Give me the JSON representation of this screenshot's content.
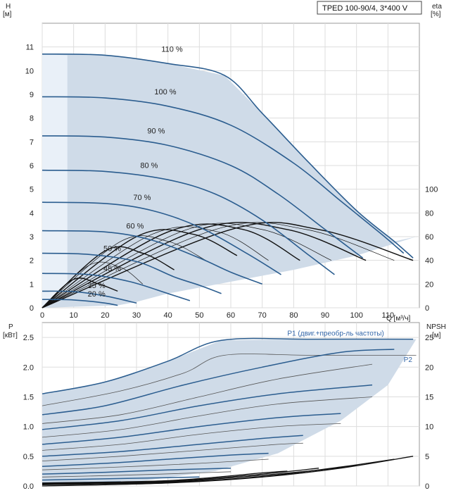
{
  "model_label": "TPED 100-90/4, 3*400 V",
  "axes": {
    "head_title": "H",
    "head_unit": "[м]",
    "eta_title": "eta",
    "eta_unit": "[%]",
    "flow_label": "Q [м³/ч]",
    "power_title": "P",
    "power_unit": "[кВт]",
    "npsh_title": "NPSH",
    "npsh_unit": "[м]"
  },
  "colors": {
    "envelope_fill": "#cfdbe8",
    "envelope_light": "#e9f0f8",
    "curve_blue": "#2b5d8f",
    "efficiency": "#111111",
    "grid": "#dddddd"
  },
  "chart_data": [
    {
      "type": "line",
      "name": "head",
      "x_range": [
        0,
        120
      ],
      "y_range": [
        0,
        12
      ],
      "x_ticks": [
        0,
        10,
        20,
        30,
        40,
        50,
        60,
        70,
        80,
        90,
        100,
        110
      ],
      "y_ticks": [
        0,
        1,
        2,
        3,
        4,
        5,
        6,
        7,
        8,
        9,
        10,
        11
      ],
      "eta_ticks": [
        0,
        20,
        40,
        60,
        80,
        100
      ],
      "eta_range_at_y": [
        0,
        5
      ],
      "grid": true,
      "speed_curves": [
        {
          "label": "110 %",
          "pts": [
            [
              0,
              10.7
            ],
            [
              20,
              10.65
            ],
            [
              40,
              10.3
            ],
            [
              58,
              9.8
            ],
            [
              70,
              8.2
            ],
            [
              85,
              6.1
            ],
            [
              100,
              4.1
            ],
            [
              112,
              2.8
            ],
            [
              118,
              2.1
            ]
          ]
        },
        {
          "label": "100 %",
          "pts": [
            [
              0,
              8.9
            ],
            [
              20,
              8.85
            ],
            [
              40,
              8.5
            ],
            [
              60,
              7.7
            ],
            [
              80,
              6.1
            ],
            [
              95,
              4.5
            ],
            [
              108,
              3.1
            ],
            [
              115,
              2.3
            ]
          ]
        },
        {
          "label": "90 %",
          "pts": [
            [
              0,
              7.25
            ],
            [
              20,
              7.2
            ],
            [
              40,
              6.85
            ],
            [
              60,
              6.0
            ],
            [
              75,
              4.8
            ],
            [
              90,
              3.3
            ],
            [
              102,
              2.1
            ]
          ]
        },
        {
          "label": "80 %",
          "pts": [
            [
              0,
              5.8
            ],
            [
              20,
              5.75
            ],
            [
              40,
              5.4
            ],
            [
              55,
              4.8
            ],
            [
              70,
              3.7
            ],
            [
              85,
              2.2
            ],
            [
              93,
              1.4
            ]
          ]
        },
        {
          "label": "70 %",
          "pts": [
            [
              0,
              4.45
            ],
            [
              20,
              4.4
            ],
            [
              35,
              4.1
            ],
            [
              50,
              3.4
            ],
            [
              65,
              2.3
            ],
            [
              76,
              1.4
            ]
          ]
        },
        {
          "label": "60 %",
          "pts": [
            [
              0,
              3.25
            ],
            [
              20,
              3.2
            ],
            [
              35,
              2.85
            ],
            [
              50,
              2.1
            ],
            [
              60,
              1.5
            ],
            [
              70,
              1.0
            ]
          ]
        },
        {
          "label": "50 %",
          "pts": [
            [
              0,
              2.3
            ],
            [
              15,
              2.25
            ],
            [
              30,
              1.95
            ],
            [
              42,
              1.3
            ],
            [
              50,
              0.95
            ],
            [
              57,
              0.6
            ]
          ]
        },
        {
          "label": "45 %",
          "pts": [
            [
              0,
              1.45
            ],
            [
              15,
              1.4
            ],
            [
              28,
              1.1
            ],
            [
              40,
              0.6
            ],
            [
              47,
              0.3
            ]
          ]
        },
        {
          "label": "25 %",
          "pts": [
            [
              0,
              0.7
            ],
            [
              10,
              0.68
            ],
            [
              20,
              0.5
            ],
            [
              30,
              0.2
            ]
          ]
        },
        {
          "label": "20 %",
          "pts": [
            [
              0,
              0.35
            ],
            [
              10,
              0.33
            ],
            [
              20,
              0.2
            ],
            [
              24,
              0.1
            ]
          ]
        }
      ],
      "efficiency_curves": [
        {
          "pts": [
            [
              0,
              0
            ],
            [
              10,
              1.2
            ],
            [
              18,
              1.0
            ],
            [
              24,
              0.7
            ]
          ]
        },
        {
          "pts": [
            [
              0,
              0
            ],
            [
              15,
              1.8
            ],
            [
              25,
              1.7
            ],
            [
              32,
              1.0
            ]
          ]
        },
        {
          "pts": [
            [
              0,
              0
            ],
            [
              20,
              2.4
            ],
            [
              32,
              2.3
            ],
            [
              42,
              1.6
            ]
          ]
        },
        {
          "pts": [
            [
              0,
              0
            ],
            [
              25,
              2.8
            ],
            [
              40,
              2.8
            ],
            [
              52,
              2.0
            ]
          ]
        },
        {
          "pts": [
            [
              0,
              0
            ],
            [
              30,
              3.0
            ],
            [
              48,
              3.1
            ],
            [
              62,
              2.2
            ]
          ]
        },
        {
          "pts": [
            [
              0,
              0
            ],
            [
              35,
              3.1
            ],
            [
              56,
              3.2
            ],
            [
              72,
              2.0
            ]
          ]
        },
        {
          "pts": [
            [
              0,
              0
            ],
            [
              40,
              3.2
            ],
            [
              64,
              3.3
            ],
            [
              82,
              2.0
            ]
          ]
        },
        {
          "pts": [
            [
              0,
              0
            ],
            [
              45,
              3.25
            ],
            [
              70,
              3.3
            ],
            [
              92,
              2.0
            ]
          ]
        },
        {
          "pts": [
            [
              0,
              0
            ],
            [
              50,
              3.3
            ],
            [
              78,
              3.3
            ],
            [
              103,
              2.0
            ]
          ]
        },
        {
          "pts": [
            [
              0,
              0
            ],
            [
              55,
              3.3
            ],
            [
              84,
              3.3
            ],
            [
              112,
              2.0
            ]
          ]
        },
        {
          "pts": [
            [
              0,
              0
            ],
            [
              60,
              3.3
            ],
            [
              88,
              3.3
            ],
            [
              118,
              2.0
            ]
          ]
        }
      ],
      "envelope_upper": [
        [
          0,
          10.7
        ],
        [
          20,
          10.65
        ],
        [
          40,
          10.3
        ],
        [
          58,
          9.8
        ],
        [
          70,
          8.2
        ],
        [
          85,
          6.1
        ],
        [
          100,
          4.1
        ],
        [
          112,
          2.8
        ],
        [
          119,
          3.0
        ]
      ],
      "envelope_lower": [
        [
          119,
          3.0
        ],
        [
          100,
          2.2
        ],
        [
          80,
          1.6
        ],
        [
          60,
          1.1
        ],
        [
          40,
          0.6
        ],
        [
          30,
          0.25
        ],
        [
          24,
          0.1
        ],
        [
          0,
          0
        ]
      ]
    },
    {
      "type": "line",
      "name": "power",
      "x_range": [
        0,
        120
      ],
      "y_range": [
        0,
        2.75
      ],
      "y_ticks": [
        0.0,
        0.5,
        1.0,
        1.5,
        2.0,
        2.5
      ],
      "npsh_ticks": [
        0,
        5,
        10,
        15,
        20,
        25
      ],
      "grid": true,
      "series_labels": [
        "P1 (двиг.+преобр-ль частоты)",
        "P2"
      ],
      "p1_curves": [
        {
          "pts": [
            [
              0,
              1.55
            ],
            [
              20,
              1.75
            ],
            [
              40,
              2.1
            ],
            [
              57,
              2.45
            ],
            [
              85,
              2.47
            ],
            [
              118,
              2.47
            ]
          ]
        },
        {
          "pts": [
            [
              0,
              1.2
            ],
            [
              20,
              1.35
            ],
            [
              45,
              1.7
            ],
            [
              70,
              2.0
            ],
            [
              95,
              2.25
            ],
            [
              112,
              2.3
            ]
          ]
        },
        {
          "pts": [
            [
              0,
              0.95
            ],
            [
              25,
              1.1
            ],
            [
              50,
              1.35
            ],
            [
              75,
              1.55
            ],
            [
              105,
              1.7
            ]
          ]
        },
        {
          "pts": [
            [
              0,
              0.7
            ],
            [
              25,
              0.82
            ],
            [
              50,
              1.0
            ],
            [
              75,
              1.15
            ],
            [
              95,
              1.22
            ]
          ]
        },
        {
          "pts": [
            [
              0,
              0.5
            ],
            [
              25,
              0.58
            ],
            [
              50,
              0.7
            ],
            [
              70,
              0.8
            ],
            [
              83,
              0.85
            ]
          ]
        },
        {
          "pts": [
            [
              0,
              0.33
            ],
            [
              20,
              0.38
            ],
            [
              40,
              0.45
            ],
            [
              60,
              0.52
            ],
            [
              72,
              0.55
            ]
          ]
        },
        {
          "pts": [
            [
              0,
              0.2
            ],
            [
              20,
              0.23
            ],
            [
              40,
              0.27
            ],
            [
              60,
              0.3
            ]
          ]
        },
        {
          "pts": [
            [
              0,
              0.1
            ],
            [
              20,
              0.12
            ],
            [
              40,
              0.14
            ],
            [
              50,
              0.15
            ]
          ]
        },
        {
          "pts": [
            [
              0,
              0.05
            ],
            [
              15,
              0.06
            ],
            [
              25,
              0.07
            ]
          ]
        }
      ],
      "p2_curves": [
        {
          "pts": [
            [
              0,
              1.35
            ],
            [
              25,
              1.6
            ],
            [
              45,
              1.9
            ],
            [
              58,
              2.2
            ],
            [
              85,
              2.2
            ],
            [
              119,
              2.2
            ]
          ]
        },
        {
          "pts": [
            [
              0,
              1.05
            ],
            [
              25,
              1.2
            ],
            [
              50,
              1.5
            ],
            [
              75,
              1.8
            ],
            [
              105,
              2.05
            ]
          ]
        },
        {
          "pts": [
            [
              0,
              0.82
            ],
            [
              25,
              0.95
            ],
            [
              50,
              1.18
            ],
            [
              75,
              1.38
            ],
            [
              105,
              1.5
            ]
          ]
        },
        {
          "pts": [
            [
              0,
              0.6
            ],
            [
              25,
              0.7
            ],
            [
              50,
              0.87
            ],
            [
              75,
              1.0
            ],
            [
              95,
              1.05
            ]
          ]
        },
        {
          "pts": [
            [
              0,
              0.42
            ],
            [
              25,
              0.5
            ],
            [
              50,
              0.6
            ],
            [
              75,
              0.7
            ],
            [
              83,
              0.72
            ]
          ]
        },
        {
          "pts": [
            [
              0,
              0.27
            ],
            [
              25,
              0.32
            ],
            [
              50,
              0.38
            ],
            [
              72,
              0.45
            ]
          ]
        },
        {
          "pts": [
            [
              0,
              0.15
            ],
            [
              25,
              0.18
            ],
            [
              50,
              0.22
            ],
            [
              60,
              0.24
            ]
          ]
        }
      ],
      "npsh_curves": [
        {
          "pts": [
            [
              0,
              0.0
            ],
            [
              40,
              0.05
            ],
            [
              70,
              0.15
            ],
            [
              95,
              0.3
            ],
            [
              118,
              0.5
            ]
          ]
        },
        {
          "pts": [
            [
              0,
              0.02
            ],
            [
              40,
              0.06
            ],
            [
              70,
              0.16
            ],
            [
              95,
              0.32
            ],
            [
              112,
              0.45
            ]
          ]
        },
        {
          "pts": [
            [
              0,
              0.03
            ],
            [
              40,
              0.07
            ],
            [
              70,
              0.18
            ],
            [
              90,
              0.28
            ],
            [
              100,
              0.35
            ]
          ]
        },
        {
          "pts": [
            [
              0,
              0.04
            ],
            [
              40,
              0.08
            ],
            [
              70,
              0.2
            ],
            [
              88,
              0.3
            ]
          ]
        },
        {
          "pts": [
            [
              0,
              0.05
            ],
            [
              40,
              0.09
            ],
            [
              70,
              0.22
            ],
            [
              78,
              0.25
            ]
          ]
        }
      ],
      "envelope_upper": [
        [
          0,
          1.55
        ],
        [
          20,
          1.75
        ],
        [
          40,
          2.1
        ],
        [
          57,
          2.45
        ],
        [
          85,
          2.47
        ],
        [
          119,
          2.47
        ]
      ],
      "envelope_lower": [
        [
          119,
          2.47
        ],
        [
          110,
          1.7
        ],
        [
          95,
          1.1
        ],
        [
          75,
          0.55
        ],
        [
          55,
          0.25
        ],
        [
          30,
          0.07
        ],
        [
          0,
          0.03
        ]
      ]
    }
  ]
}
